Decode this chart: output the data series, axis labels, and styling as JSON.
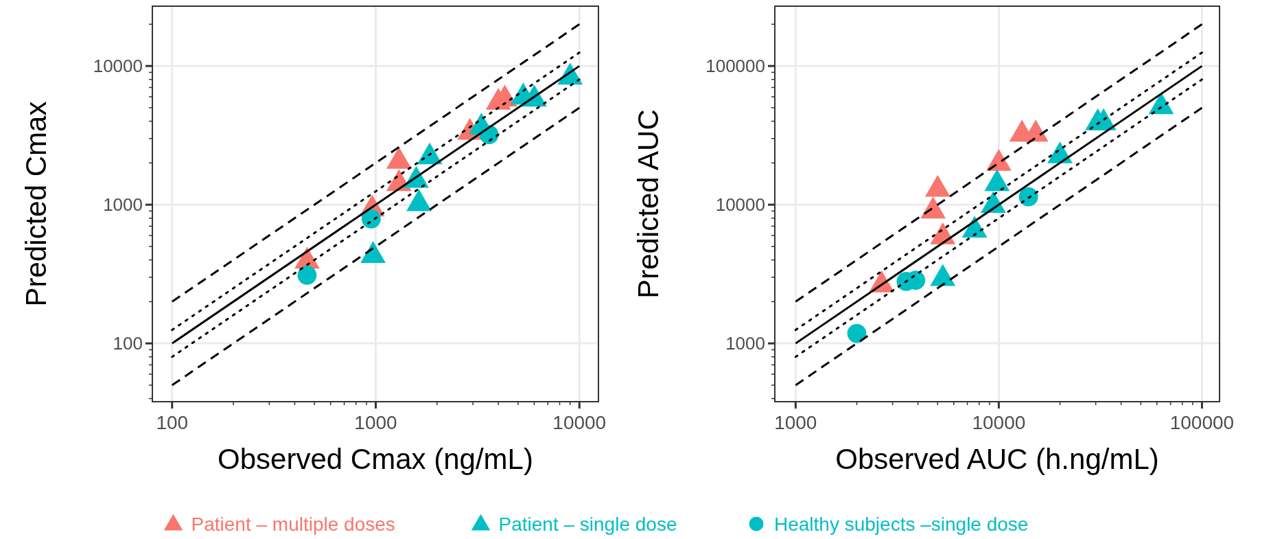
{
  "chart_data": [
    {
      "type": "scatter",
      "xlabel": "Observed Cmax (ng/mL)",
      "ylabel": "Predicted Cmax",
      "log": "xy",
      "grid": true,
      "legend": "bottom",
      "xlim": [
        80,
        12400
      ],
      "ylim": [
        38,
        27000
      ],
      "xticks": [
        100,
        {
          "value": 200,
          "label": null
        },
        {
          "value": 300,
          "label": null
        },
        {
          "value": 400,
          "label": null
        },
        {
          "value": 500,
          "label": null
        },
        {
          "value": 600,
          "label": null
        },
        {
          "value": 700,
          "label": null
        },
        {
          "value": 800,
          "label": null
        },
        {
          "value": 900,
          "label": null
        },
        1000,
        {
          "value": 2000,
          "label": null
        },
        {
          "value": 3000,
          "label": null
        },
        {
          "value": 4000,
          "label": null
        },
        {
          "value": 5000,
          "label": null
        },
        {
          "value": 6000,
          "label": null
        },
        {
          "value": 7000,
          "label": null
        },
        {
          "value": 8000,
          "label": null
        },
        {
          "value": 9000,
          "label": null
        },
        10000
      ],
      "yticks": [
        {
          "value": 40,
          "label": null
        },
        {
          "value": 50,
          "label": null
        },
        {
          "value": 60,
          "label": null
        },
        {
          "value": 70,
          "label": null
        },
        {
          "value": 80,
          "label": null
        },
        {
          "value": 90,
          "label": null
        },
        100,
        {
          "value": 200,
          "label": null
        },
        {
          "value": 300,
          "label": null
        },
        {
          "value": 400,
          "label": null
        },
        {
          "value": 500,
          "label": null
        },
        {
          "value": 600,
          "label": null
        },
        {
          "value": 700,
          "label": null
        },
        {
          "value": 800,
          "label": null
        },
        {
          "value": 900,
          "label": null
        },
        1000,
        {
          "value": 2000,
          "label": null
        },
        {
          "value": 3000,
          "label": null
        },
        {
          "value": 4000,
          "label": null
        },
        {
          "value": 5000,
          "label": null
        },
        {
          "value": 6000,
          "label": null
        },
        {
          "value": 7000,
          "label": null
        },
        {
          "value": 8000,
          "label": null
        },
        {
          "value": 9000,
          "label": null
        },
        10000,
        {
          "value": 20000,
          "label": null
        }
      ],
      "series": [
        {
          "type": "line",
          "color": "#000000",
          "marker": "none",
          "line_style": "dashed",
          "x": [
            100,
            10000
          ],
          "values": [
            200,
            20000
          ]
        },
        {
          "type": "line",
          "color": "#000000",
          "marker": "none",
          "line_style": "dotted",
          "x": [
            100,
            10000
          ],
          "values": [
            125,
            12500
          ]
        },
        {
          "type": "line",
          "color": "#000000",
          "marker": "none",
          "line_style": "solid",
          "x": [
            100,
            10000
          ],
          "values": [
            100,
            10000
          ]
        },
        {
          "type": "line",
          "color": "#000000",
          "marker": "none",
          "line_style": "dotted",
          "x": [
            100,
            10000
          ],
          "values": [
            80,
            8000
          ]
        },
        {
          "type": "line",
          "color": "#000000",
          "marker": "none",
          "line_style": "dashed",
          "x": [
            100,
            10000
          ],
          "values": [
            50,
            5000
          ]
        },
        {
          "name": "Patient – multiple doses",
          "color": "#f8766d",
          "marker": "triangle",
          "x": [
            460,
            960,
            1300,
            1300,
            2900,
            4000,
            4300
          ],
          "values": [
            400,
            950,
            1450,
            2100,
            3400,
            5600,
            5900
          ]
        },
        {
          "name": "Patient – single dose",
          "color": "#00bfc4",
          "marker": "triangle",
          "x": [
            970,
            1630,
            1580,
            1840,
            3300,
            5300,
            6000,
            9000
          ],
          "values": [
            440,
            1040,
            1530,
            2260,
            3700,
            6100,
            5900,
            8500
          ]
        },
        {
          "name": "Healthy subjects –single dose",
          "color": "#00bfc4",
          "marker": "circle",
          "x": [
            460,
            950,
            3600
          ],
          "values": [
            310,
            790,
            3200
          ]
        }
      ]
    },
    {
      "type": "scatter",
      "xlabel": "Observed AUC (h.ng/mL)",
      "ylabel": "Predicted AUC",
      "log": "xy",
      "grid": true,
      "xlim": [
        790,
        122000
      ],
      "ylim": [
        380,
        270000
      ],
      "xticks": [
        1000,
        {
          "value": 2000,
          "label": null
        },
        {
          "value": 3000,
          "label": null
        },
        {
          "value": 4000,
          "label": null
        },
        {
          "value": 5000,
          "label": null
        },
        {
          "value": 6000,
          "label": null
        },
        {
          "value": 7000,
          "label": null
        },
        {
          "value": 8000,
          "label": null
        },
        {
          "value": 9000,
          "label": null
        },
        10000,
        {
          "value": 20000,
          "label": null
        },
        {
          "value": 30000,
          "label": null
        },
        {
          "value": 40000,
          "label": null
        },
        {
          "value": 50000,
          "label": null
        },
        {
          "value": 60000,
          "label": null
        },
        {
          "value": 70000,
          "label": null
        },
        {
          "value": 80000,
          "label": null
        },
        {
          "value": 90000,
          "label": null
        },
        100000
      ],
      "yticks": [
        {
          "value": 400,
          "label": null
        },
        {
          "value": 500,
          "label": null
        },
        {
          "value": 600,
          "label": null
        },
        {
          "value": 700,
          "label": null
        },
        {
          "value": 800,
          "label": null
        },
        {
          "value": 900,
          "label": null
        },
        1000,
        {
          "value": 2000,
          "label": null
        },
        {
          "value": 3000,
          "label": null
        },
        {
          "value": 4000,
          "label": null
        },
        {
          "value": 5000,
          "label": null
        },
        {
          "value": 6000,
          "label": null
        },
        {
          "value": 7000,
          "label": null
        },
        {
          "value": 8000,
          "label": null
        },
        {
          "value": 9000,
          "label": null
        },
        10000,
        {
          "value": 20000,
          "label": null
        },
        {
          "value": 30000,
          "label": null
        },
        {
          "value": 40000,
          "label": null
        },
        {
          "value": 50000,
          "label": null
        },
        {
          "value": 60000,
          "label": null
        },
        {
          "value": 70000,
          "label": null
        },
        {
          "value": 80000,
          "label": null
        },
        {
          "value": 90000,
          "label": null
        },
        100000,
        {
          "value": 200000,
          "label": null
        }
      ],
      "series": [
        {
          "type": "line",
          "color": "#000000",
          "marker": "none",
          "line_style": "dashed",
          "x": [
            1000,
            100000
          ],
          "values": [
            2000,
            200000
          ]
        },
        {
          "type": "line",
          "color": "#000000",
          "marker": "none",
          "line_style": "dotted",
          "x": [
            1000,
            100000
          ],
          "values": [
            1250,
            125000
          ]
        },
        {
          "type": "line",
          "color": "#000000",
          "marker": "none",
          "line_style": "solid",
          "x": [
            1000,
            100000
          ],
          "values": [
            1000,
            100000
          ]
        },
        {
          "type": "line",
          "color": "#000000",
          "marker": "none",
          "line_style": "dotted",
          "x": [
            1000,
            100000
          ],
          "values": [
            800,
            80000
          ]
        },
        {
          "type": "line",
          "color": "#000000",
          "marker": "none",
          "line_style": "dashed",
          "x": [
            1000,
            100000
          ],
          "values": [
            500,
            50000
          ]
        },
        {
          "color": "#f8766d",
          "marker": "triangle",
          "x": [
            2650,
            5300,
            4750,
            5000,
            10000,
            13000,
            15200
          ],
          "values": [
            2700,
            6000,
            9200,
            13200,
            20300,
            33000,
            33000
          ]
        },
        {
          "color": "#00bfc4",
          "marker": "triangle",
          "x": [
            5300,
            7600,
            9400,
            9800,
            20000,
            30700,
            32800,
            63000
          ],
          "values": [
            3000,
            6700,
            10100,
            14500,
            23000,
            39800,
            39800,
            52000
          ]
        },
        {
          "color": "#00bfc4",
          "marker": "circle",
          "x": [
            2000,
            3500,
            3900,
            14000
          ],
          "values": [
            1180,
            2800,
            2850,
            11400
          ]
        }
      ]
    }
  ]
}
